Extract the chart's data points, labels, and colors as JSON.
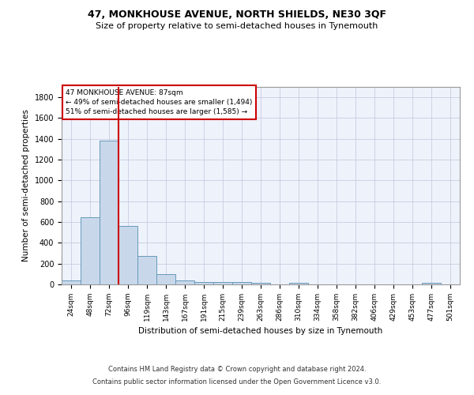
{
  "title": "47, MONKHOUSE AVENUE, NORTH SHIELDS, NE30 3QF",
  "subtitle": "Size of property relative to semi-detached houses in Tynemouth",
  "xlabel": "Distribution of semi-detached houses by size in Tynemouth",
  "ylabel": "Number of semi-detached properties",
  "footer_line1": "Contains HM Land Registry data © Crown copyright and database right 2024.",
  "footer_line2": "Contains public sector information licensed under the Open Government Licence v3.0.",
  "annotation_line1": "47 MONKHOUSE AVENUE: 87sqm",
  "annotation_line2": "← 49% of semi-detached houses are smaller (1,494)",
  "annotation_line3": "51% of semi-detached houses are larger (1,585) →",
  "property_bin_index": 2,
  "bin_labels": [
    "24sqm",
    "48sqm",
    "72sqm",
    "96sqm",
    "119sqm",
    "143sqm",
    "167sqm",
    "191sqm",
    "215sqm",
    "239sqm",
    "263sqm",
    "286sqm",
    "310sqm",
    "334sqm",
    "358sqm",
    "382sqm",
    "406sqm",
    "429sqm",
    "453sqm",
    "477sqm",
    "501sqm"
  ],
  "bar_values": [
    35,
    645,
    1380,
    560,
    270,
    100,
    35,
    25,
    20,
    20,
    15,
    0,
    15,
    0,
    0,
    0,
    0,
    0,
    0,
    15,
    0
  ],
  "bar_color": "#c8d8ea",
  "bar_edge_color": "#6699bb",
  "bar_linewidth": 0.7,
  "red_line_color": "#cc0000",
  "annotation_box_color": "#cc0000",
  "background_color": "#eef2fb",
  "grid_color": "#c8cce0",
  "ylim": [
    0,
    1900
  ],
  "yticks": [
    0,
    200,
    400,
    600,
    800,
    1000,
    1200,
    1400,
    1600,
    1800
  ]
}
